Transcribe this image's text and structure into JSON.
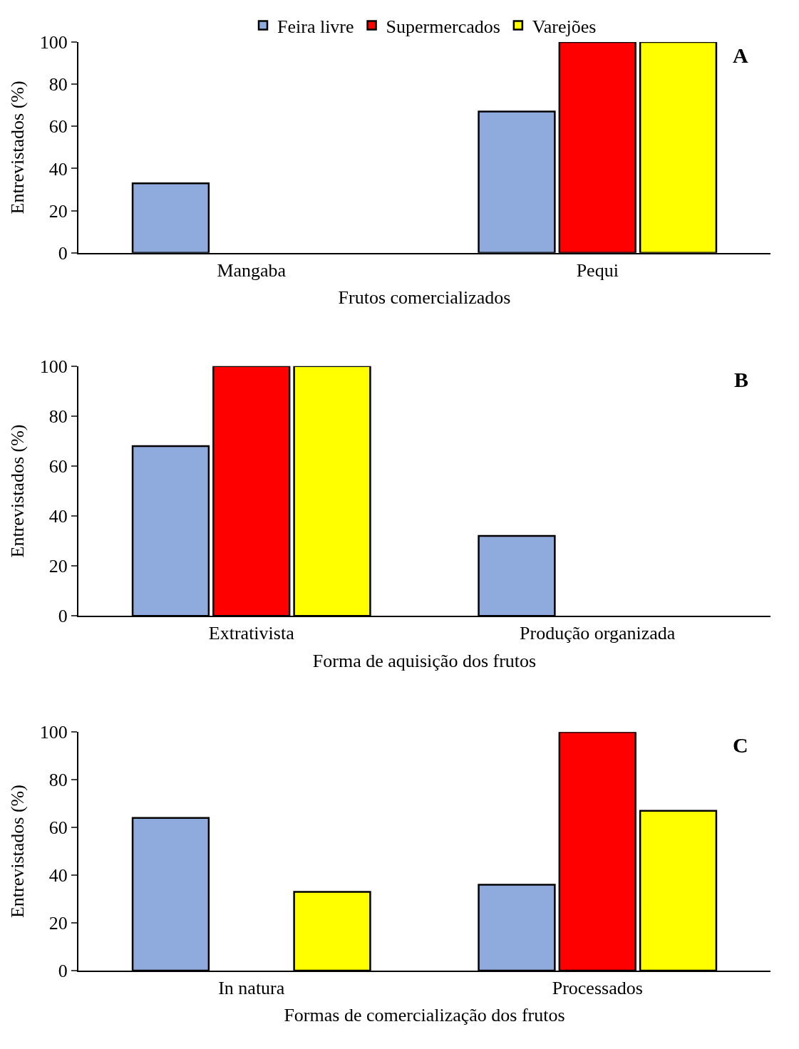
{
  "chart_data": [
    {
      "type": "bar",
      "categories": [
        "Mangaba",
        "Pequi"
      ],
      "xlabel": "Frutos comercializados",
      "ylabel": "Entrevistados (%)",
      "annotations": [
        "A"
      ],
      "ylim": [
        0,
        100
      ],
      "yticks": [
        0,
        20,
        40,
        60,
        80,
        100
      ],
      "legend": "top",
      "series": [
        {
          "name": "Feira livre",
          "color": "#8faadc",
          "values": [
            33,
            67
          ]
        },
        {
          "name": "Supermercados",
          "color": "#ff0000",
          "values": [
            null,
            100
          ]
        },
        {
          "name": "Varejões",
          "color": "#ffff00",
          "values": [
            null,
            100
          ]
        }
      ]
    },
    {
      "type": "bar",
      "categories": [
        "Extrativista",
        "Produção organizada"
      ],
      "xlabel": "Forma de aquisição dos frutos",
      "ylabel": "Entrevistados (%)",
      "annotations": [
        "B"
      ],
      "ylim": [
        0,
        100
      ],
      "yticks": [
        0,
        20,
        40,
        60,
        80,
        100
      ],
      "series": [
        {
          "color": "#8faadc",
          "values": [
            68,
            32
          ]
        },
        {
          "color": "#ff0000",
          "values": [
            100,
            null
          ]
        },
        {
          "color": "#ffff00",
          "values": [
            100,
            null
          ]
        }
      ]
    },
    {
      "type": "bar",
      "categories": [
        "In natura",
        "Processados"
      ],
      "xlabel": "Formas de comercialização dos frutos",
      "ylabel": "Entrevistados (%)",
      "annotations": [
        "C"
      ],
      "ylim": [
        0,
        100
      ],
      "yticks": [
        0,
        20,
        40,
        60,
        80,
        100
      ],
      "series": [
        {
          "color": "#8faadc",
          "values": [
            64,
            36
          ]
        },
        {
          "color": "#ff0000",
          "values": [
            null,
            100
          ]
        },
        {
          "color": "#ffff00",
          "values": [
            33,
            67
          ]
        }
      ]
    }
  ]
}
